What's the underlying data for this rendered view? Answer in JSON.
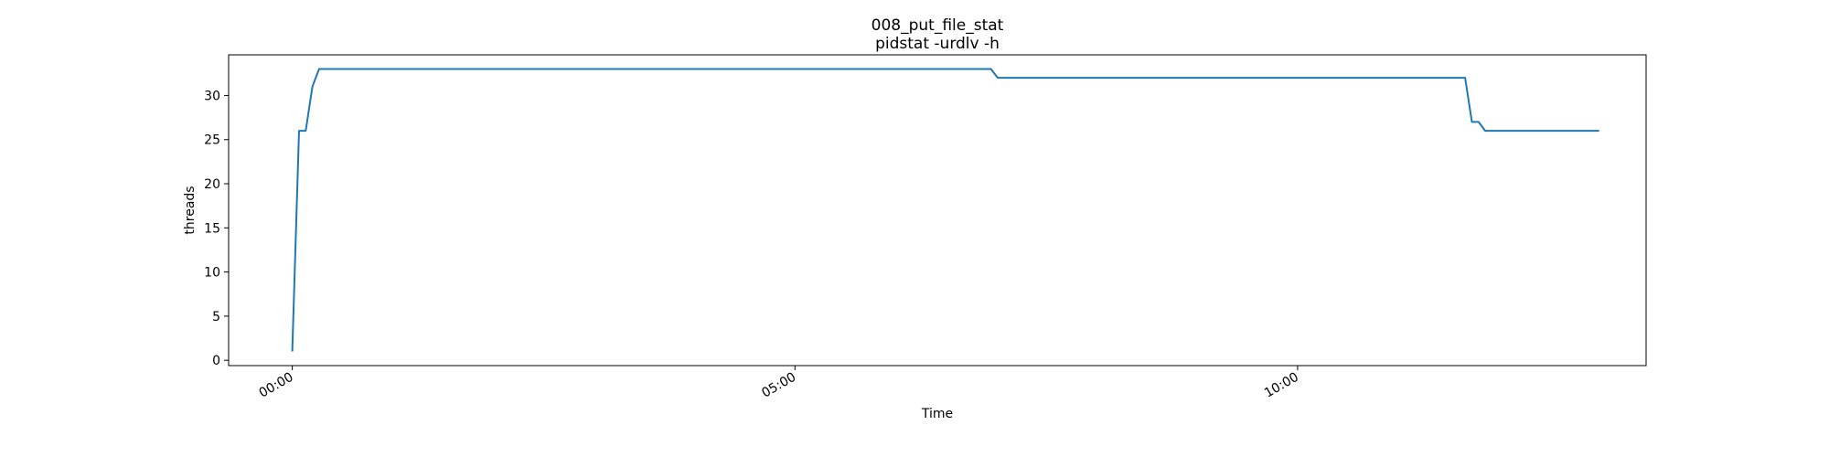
{
  "chart_data": {
    "type": "line",
    "title": "008_put_file_stat",
    "subtitle": "pidstat -urdlv -h",
    "xlabel": "Time",
    "ylabel": "threads",
    "xlim": [
      "-00:38",
      "13:28"
    ],
    "ylim": [
      -0.6,
      34.6
    ],
    "grid": false,
    "x_ticks": [
      {
        "label": "00:00",
        "time": "00:00"
      },
      {
        "label": "05:00",
        "time": "05:00"
      },
      {
        "label": "10:00",
        "time": "10:00"
      }
    ],
    "y_ticks": [
      0,
      5,
      10,
      15,
      20,
      25,
      30
    ],
    "color": "#1f77b4",
    "series": [
      {
        "x": [
          "00:00",
          "00:04",
          "00:08",
          "00:12",
          "00:16",
          "00:20",
          "06:57",
          "07:01",
          "11:40",
          "11:44",
          "11:48",
          "11:52",
          "13:00"
        ],
        "values": [
          1,
          26,
          26,
          31,
          33,
          33,
          33,
          32,
          32,
          27,
          27,
          26,
          26
        ]
      }
    ]
  }
}
